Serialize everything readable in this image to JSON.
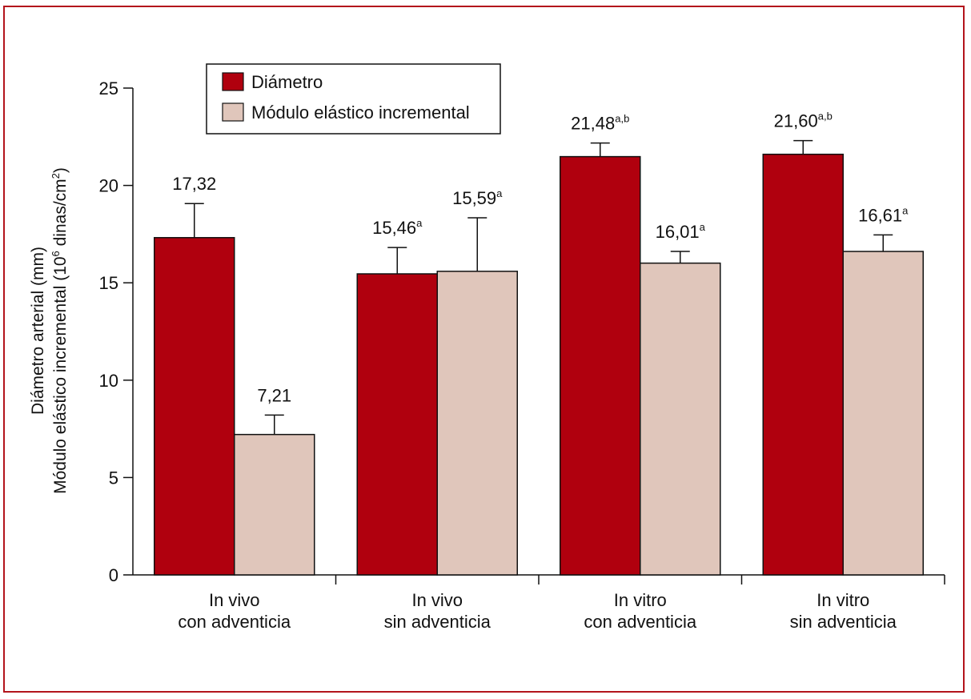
{
  "chart_data": {
    "type": "bar",
    "categories": [
      [
        "In vivo",
        "con adventicia"
      ],
      [
        "In vivo",
        "sin adventicia"
      ],
      [
        "In vitro",
        "con adventicia"
      ],
      [
        "In vitro",
        "sin adventicia"
      ]
    ],
    "series": [
      {
        "name": "Diámetro",
        "color": "#b0000e",
        "values": [
          17.32,
          15.46,
          21.48,
          21.6
        ],
        "error": [
          1.75,
          1.35,
          0.7,
          0.7
        ],
        "labels": [
          "17,32",
          "15,46",
          "21,48",
          "21,60"
        ],
        "superscripts": [
          "",
          "a",
          "a,b",
          "a,b"
        ]
      },
      {
        "name": "Módulo elástico incremental",
        "color": "#e0c6bb",
        "values": [
          7.21,
          15.59,
          16.01,
          16.61
        ],
        "error": [
          1.0,
          2.75,
          0.6,
          0.85
        ],
        "labels": [
          "7,21",
          "15,59",
          "16,01",
          "16,61"
        ],
        "superscripts": [
          "",
          "a",
          "a",
          "a"
        ]
      }
    ],
    "ylabel_line1": "Diámetro arterial (mm)",
    "ylabel_line2_prefix": "Módulo elástico incremental (10",
    "ylabel_line2_exp": "6",
    "ylabel_line2_mid": " dinas/cm",
    "ylabel_line2_exp2": "2",
    "ylabel_line2_suffix": ")",
    "ylim": [
      0,
      25
    ],
    "yticks": [
      "0",
      "5",
      "10",
      "15",
      "20",
      "25"
    ],
    "grid": false,
    "legend_position": "top-left"
  }
}
